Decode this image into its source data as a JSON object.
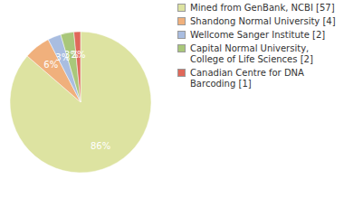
{
  "chart_data": {
    "type": "pie",
    "categories": [
      "Mined from GenBank, NCBI [57]",
      "Shandong Normal University [4]",
      "Wellcome Sanger Institute [2]",
      "Capital Normal University, College of Life Sciences [2]",
      "Canadian Centre for DNA Barcoding [1]"
    ],
    "values": [
      57,
      4,
      2,
      2,
      1
    ],
    "value_labels": [
      "86%",
      "6%",
      "3%",
      "3%",
      "2%"
    ],
    "colors": [
      "#dde3a1",
      "#f0b07c",
      "#a9bde0",
      "#a9c77a",
      "#e0685a"
    ],
    "data_labels": true,
    "legend": "right"
  }
}
